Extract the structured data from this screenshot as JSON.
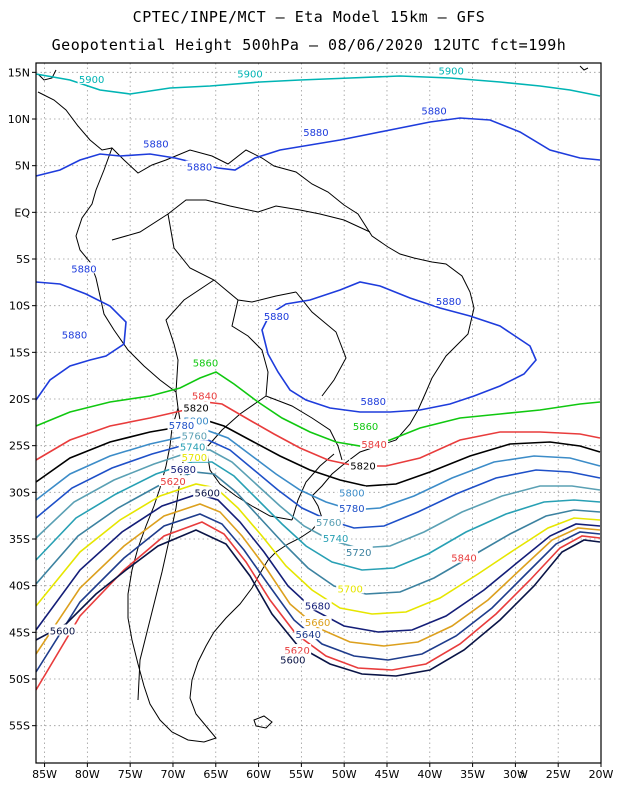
{
  "header": {
    "line1": "CPTEC/INPE/MCT – Eta Model 15km – GFS",
    "line2": "Geopotential Height 500hPa – 08/06/2020 12UTC fct=199h"
  },
  "axes": {
    "lon_ticks": [
      "85W",
      "80W",
      "75W",
      "70W",
      "65W",
      "60W",
      "55W",
      "50W",
      "45W",
      "40W",
      "35W",
      "30W",
      "25W",
      "20W"
    ],
    "lat_ticks": [
      "15N",
      "10N",
      "5N",
      "EQ",
      "5S",
      "10S",
      "15S",
      "20S",
      "25S",
      "30S",
      "35S",
      "40S",
      "45S",
      "50S",
      "55S"
    ]
  },
  "chart_data": {
    "type": "contour",
    "variable": "Geopotential Height 500hPa",
    "extent": {
      "lon": [
        -86,
        -20
      ],
      "lat": [
        -59,
        16
      ]
    },
    "grid": true,
    "contours": [
      {
        "level": "5900",
        "color": "#00b4b4"
      },
      {
        "level": "5880",
        "color": "#1e3cdc"
      },
      {
        "level": "5860",
        "color": "#10c810"
      },
      {
        "level": "5840",
        "color": "#e83c3c"
      },
      {
        "level": "5820",
        "color": "#000000"
      },
      {
        "level": "5800",
        "color": "#3c8cc8"
      },
      {
        "level": "5780",
        "color": "#1e50c8"
      },
      {
        "level": "5760",
        "color": "#5aa0b4"
      },
      {
        "level": "5740",
        "color": "#28a0b4"
      },
      {
        "level": "5720",
        "color": "#3c82a0"
      },
      {
        "level": "5700",
        "color": "#e6e600"
      },
      {
        "level": "5680",
        "color": "#141e78"
      },
      {
        "level": "5660",
        "color": "#dca01e"
      },
      {
        "level": "5640",
        "color": "#1e3c8c"
      },
      {
        "level": "5620",
        "color": "#e83c3c"
      },
      {
        "level": "5600",
        "color": "#0a1446"
      }
    ],
    "labels": [
      {
        "text": "5900",
        "level": "5900",
        "lon": -79.5,
        "lat": 14.3
      },
      {
        "text": "5900",
        "level": "5900",
        "lon": -61.0,
        "lat": 14.9
      },
      {
        "text": "5900",
        "level": "5900",
        "lon": -37.5,
        "lat": 15.2
      },
      {
        "text": "5880",
        "level": "5880",
        "lon": -39.5,
        "lat": 10.9
      },
      {
        "text": "5880",
        "level": "5880",
        "lon": -53.3,
        "lat": 8.6
      },
      {
        "text": "5880",
        "level": "5880",
        "lon": -72.0,
        "lat": 7.4
      },
      {
        "text": "5880",
        "level": "5880",
        "lon": -66.9,
        "lat": 4.9
      },
      {
        "text": "5880",
        "level": "5880",
        "lon": -80.4,
        "lat": -6.0
      },
      {
        "text": "5880",
        "level": "5880",
        "lon": -81.5,
        "lat": -13.1
      },
      {
        "text": "5880",
        "level": "5880",
        "lon": -57.9,
        "lat": -11.1
      },
      {
        "text": "5880",
        "level": "5880",
        "lon": -37.8,
        "lat": -9.5
      },
      {
        "text": "5880",
        "level": "5880",
        "lon": -46.6,
        "lat": -20.2
      },
      {
        "text": "5860",
        "level": "5860",
        "lon": -66.2,
        "lat": -16.1
      },
      {
        "text": "5860",
        "level": "5860",
        "lon": -47.5,
        "lat": -22.9
      },
      {
        "text": "5840",
        "level": "5840",
        "lon": -66.3,
        "lat": -19.6
      },
      {
        "text": "5840",
        "level": "5840",
        "lon": -46.5,
        "lat": -24.8
      },
      {
        "text": "5840",
        "level": "5840",
        "lon": -36.0,
        "lat": -37.0
      },
      {
        "text": "5820",
        "level": "5820",
        "lon": -67.3,
        "lat": -20.9
      },
      {
        "text": "5820",
        "level": "5820",
        "lon": -47.8,
        "lat": -27.1
      },
      {
        "text": "5800",
        "level": "5800",
        "lon": -67.3,
        "lat": -22.3
      },
      {
        "text": "5800",
        "level": "5800",
        "lon": -49.1,
        "lat": -30.0
      },
      {
        "text": "5780",
        "level": "5780",
        "lon": -69.0,
        "lat": -22.8
      },
      {
        "text": "5780",
        "level": "5780",
        "lon": -49.1,
        "lat": -31.7
      },
      {
        "text": "5760",
        "level": "5760",
        "lon": -67.5,
        "lat": -23.9
      },
      {
        "text": "5760",
        "level": "5760",
        "lon": -51.8,
        "lat": -33.2
      },
      {
        "text": "5740",
        "level": "5740",
        "lon": -67.7,
        "lat": -25.1
      },
      {
        "text": "5740",
        "level": "5740",
        "lon": -51.0,
        "lat": -34.9
      },
      {
        "text": "5720",
        "level": "5720",
        "lon": -48.3,
        "lat": -36.4
      },
      {
        "text": "5700",
        "level": "5700",
        "lon": -67.5,
        "lat": -26.2
      },
      {
        "text": "5700",
        "level": "5700",
        "lon": -49.3,
        "lat": -40.3
      },
      {
        "text": "5680",
        "level": "5680",
        "lon": -68.8,
        "lat": -27.5
      },
      {
        "text": "5680",
        "level": "5680",
        "lon": -53.1,
        "lat": -42.1
      },
      {
        "text": "5660",
        "level": "5660",
        "lon": -53.1,
        "lat": -43.9
      },
      {
        "text": "5640",
        "level": "5640",
        "lon": -54.2,
        "lat": -45.2
      },
      {
        "text": "5620",
        "level": "5620",
        "lon": -70.0,
        "lat": -28.8
      },
      {
        "text": "5620",
        "level": "5620",
        "lon": -55.5,
        "lat": -46.9
      },
      {
        "text": "5600",
        "level": "5600",
        "lon": -66.0,
        "lat": -30.0
      },
      {
        "text": "5600",
        "level": "5600",
        "lon": -82.9,
        "lat": -44.8
      },
      {
        "text": "5600",
        "level": "5600",
        "lon": -56.0,
        "lat": -47.9
      }
    ]
  }
}
